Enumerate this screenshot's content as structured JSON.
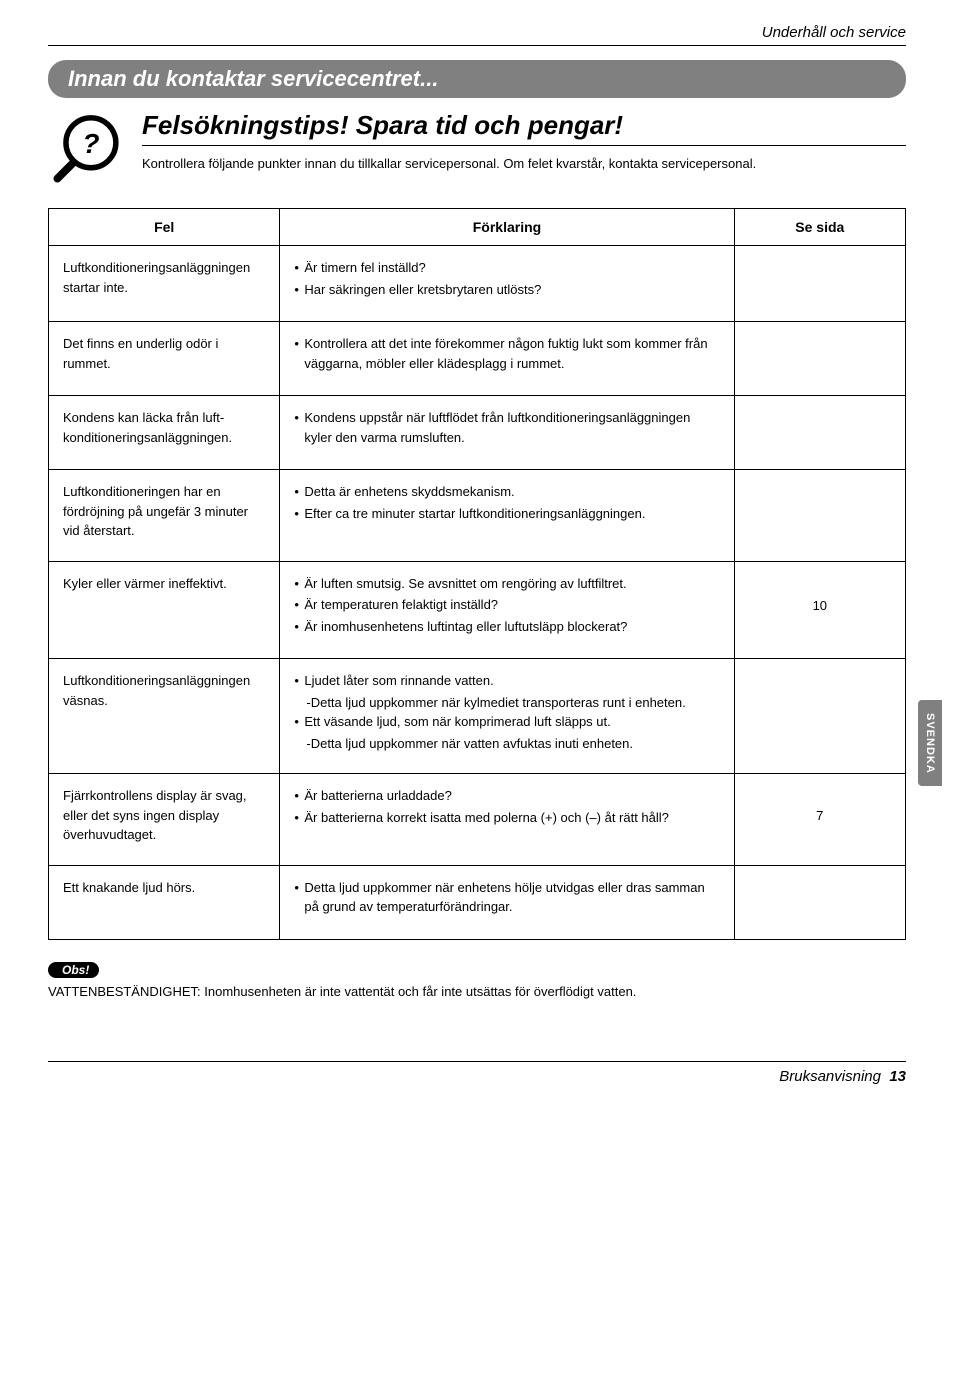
{
  "colors": {
    "banner_bg": "#808080",
    "banner_text": "#ffffff",
    "page_bg": "#ffffff",
    "text": "#000000",
    "border": "#000000",
    "sidetab_bg": "#808080",
    "obs_bg": "#000000"
  },
  "top_header": "Underhåll och service",
  "banner_title": "Innan du kontaktar servicecentret...",
  "section_title": "Felsökningstips! Spara tid och pengar!",
  "section_intro": "Kontrollera följande punkter innan du tillkallar servicepersonal. Om felet kvarstår, kontakta servicepersonal.",
  "table": {
    "headers": {
      "fel": "Fel",
      "forklaring": "Förklaring",
      "sesida": "Se sida"
    },
    "rows": [
      {
        "fel": "Luftkonditioneringsanlägg­ningen startar inte.",
        "fork_items": [
          "Är timern fel inställd?",
          "Har säkringen eller kretsbrytaren utlösts?"
        ],
        "sida": ""
      },
      {
        "fel": "Det finns en underlig odör i rummet.",
        "fork_items": [
          "Kontrollera att det inte förekommer någon fuk­tig lukt som kommer från väggarna, möbler eller klädesplagg i rummet."
        ],
        "sida": ""
      },
      {
        "fel": "Kondens kan läcka från luft­konditioneringsanläggning­en.",
        "fork_items": [
          "Kondens uppstår när luftflödet från luftkonditio­neringsanläggningen kyler den varma rumsluf­ten."
        ],
        "sida": ""
      },
      {
        "fel": "Luftkonditioneringen har en fördröjning på ungefär 3 minuter vid återstart.",
        "fork_items": [
          "Detta är enhetens skyddsmekanism.",
          "Efter ca tre minuter startar luftkonditioner­ingsanläggningen."
        ],
        "sida": ""
      },
      {
        "fel": "Kyler eller värmer ineffektivt.",
        "fork_items": [
          "Är luften smutsig.  Se avsnittet om rengöring av luftfiltret.",
          "Är temperaturen felaktigt inställd?",
          "Är inomhusenhetens luftintag eller luftutsläpp blockerat?"
        ],
        "sida": "10"
      },
      {
        "fel": "Luftkonditioneringsanlägg­ningen väsnas.",
        "fork_items_complex": [
          {
            "bullet": true,
            "text": "Ljudet låter som rinnande vatten."
          },
          {
            "bullet": false,
            "text": "-Detta ljud uppkommer när kylmediet transpor­teras runt i enheten."
          },
          {
            "bullet": true,
            "text": "Ett väsande ljud, som när komprimerad luft släpps ut."
          },
          {
            "bullet": false,
            "text": "-Detta ljud uppkommer när vatten avfuktas inuti enheten."
          }
        ],
        "sida": ""
      },
      {
        "fel": "Fjärrkontrollens display är svag, eller det syns ingen display överhuvudtaget.",
        "fork_items": [
          "Är batterierna urladdade?",
          "Är batterierna korrekt isatta med polerna (+) och (–) åt rätt håll?"
        ],
        "sida": "7"
      },
      {
        "fel": "Ett knakande ljud hörs.",
        "fork_items": [
          "Detta ljud uppkommer när enhetens hölje utvidgas eller dras samman på grund av tem­peraturförändringar."
        ],
        "sida": ""
      }
    ]
  },
  "obs_label": "Obs!",
  "obs_text": "VATTENBESTÄNDIGHET: Inomhusenheten är inte vattentät och får inte utsättas för överflödigt vatten.",
  "sidetab": "SVENDKA",
  "footer_label": "Bruksanvisning",
  "footer_page": "13"
}
